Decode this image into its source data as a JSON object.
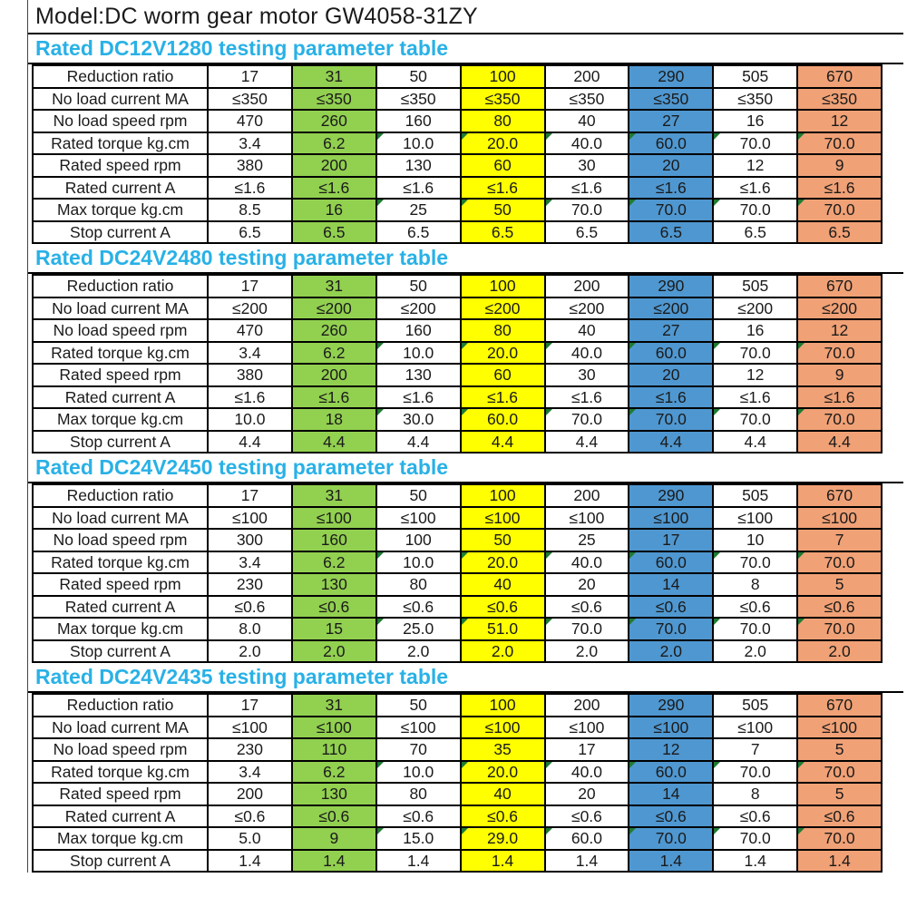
{
  "page_title": "Model:DC worm gear motor GW4058-31ZY",
  "colors": {
    "title_text": "#1a1a1a",
    "header_text": "#29b1e6",
    "green": "#92d050",
    "yellow": "#ffff00",
    "blue": "#4f97d0",
    "salmon": "#f0a176",
    "border": "#000000"
  },
  "column_colors": [
    "none",
    "green",
    "none",
    "yellow",
    "none",
    "blue",
    "none",
    "salmon"
  ],
  "row_labels": [
    "Reduction ratio",
    "No load current MA",
    "No load speed rpm",
    "Rated torque kg.cm",
    "Rated speed rpm",
    "Rated current A",
    "Max torque kg.cm",
    "Stop current A"
  ],
  "tables": [
    {
      "title": "Rated DC12V1280 testing parameter table",
      "rows": [
        {
          "label": "Reduction ratio",
          "values": [
            "17",
            "31",
            "50",
            "100",
            "200",
            "290",
            "505",
            "670"
          ]
        },
        {
          "label": "No load current MA",
          "values": [
            "≤350",
            "≤350",
            "≤350",
            "≤350",
            "≤350",
            "≤350",
            "≤350",
            "≤350"
          ]
        },
        {
          "label": "No load speed rpm",
          "values": [
            "470",
            "260",
            "160",
            "80",
            "40",
            "27",
            "16",
            "12"
          ]
        },
        {
          "label": "Rated torque kg.cm",
          "values": [
            "3.4",
            "6.2",
            "10.0",
            "20.0",
            "40.0",
            "60.0",
            "70.0",
            "70.0"
          ]
        },
        {
          "label": "Rated speed rpm",
          "values": [
            "380",
            "200",
            "130",
            "60",
            "30",
            "20",
            "12",
            "9"
          ]
        },
        {
          "label": "Rated current A",
          "values": [
            "≤1.6",
            "≤1.6",
            "≤1.6",
            "≤1.6",
            "≤1.6",
            "≤1.6",
            "≤1.6",
            "≤1.6"
          ]
        },
        {
          "label": "Max torque kg.cm",
          "values": [
            "8.5",
            "16",
            "25",
            "50",
            "70.0",
            "70.0",
            "70.0",
            "70.0"
          ]
        },
        {
          "label": "Stop current A",
          "values": [
            "6.5",
            "6.5",
            "6.5",
            "6.5",
            "6.5",
            "6.5",
            "6.5",
            "6.5"
          ]
        }
      ]
    },
    {
      "title": "Rated DC24V2480 testing parameter table",
      "rows": [
        {
          "label": "Reduction ratio",
          "values": [
            "17",
            "31",
            "50",
            "100",
            "200",
            "290",
            "505",
            "670"
          ]
        },
        {
          "label": "No load current MA",
          "values": [
            "≤200",
            "≤200",
            "≤200",
            "≤200",
            "≤200",
            "≤200",
            "≤200",
            "≤200"
          ]
        },
        {
          "label": "No load speed rpm",
          "values": [
            "470",
            "260",
            "160",
            "80",
            "40",
            "27",
            "16",
            "12"
          ]
        },
        {
          "label": "Rated torque kg.cm",
          "values": [
            "3.4",
            "6.2",
            "10.0",
            "20.0",
            "40.0",
            "60.0",
            "70.0",
            "70.0"
          ]
        },
        {
          "label": "Rated speed rpm",
          "values": [
            "380",
            "200",
            "130",
            "60",
            "30",
            "20",
            "12",
            "9"
          ]
        },
        {
          "label": "Rated current A",
          "values": [
            "≤1.6",
            "≤1.6",
            "≤1.6",
            "≤1.6",
            "≤1.6",
            "≤1.6",
            "≤1.6",
            "≤1.6"
          ]
        },
        {
          "label": "Max torque kg.cm",
          "values": [
            "10.0",
            "18",
            "30.0",
            "60.0",
            "70.0",
            "70.0",
            "70.0",
            "70.0"
          ]
        },
        {
          "label": "Stop current A",
          "values": [
            "4.4",
            "4.4",
            "4.4",
            "4.4",
            "4.4",
            "4.4",
            "4.4",
            "4.4"
          ]
        }
      ]
    },
    {
      "title": "Rated DC24V2450 testing parameter table",
      "rows": [
        {
          "label": "Reduction ratio",
          "values": [
            "17",
            "31",
            "50",
            "100",
            "200",
            "290",
            "505",
            "670"
          ]
        },
        {
          "label": "No load current MA",
          "values": [
            "≤100",
            "≤100",
            "≤100",
            "≤100",
            "≤100",
            "≤100",
            "≤100",
            "≤100"
          ]
        },
        {
          "label": "No load speed rpm",
          "values": [
            "300",
            "160",
            "100",
            "50",
            "25",
            "17",
            "10",
            "7"
          ]
        },
        {
          "label": "Rated torque kg.cm",
          "values": [
            "3.4",
            "6.2",
            "10.0",
            "20.0",
            "40.0",
            "60.0",
            "70.0",
            "70.0"
          ]
        },
        {
          "label": "Rated speed rpm",
          "values": [
            "230",
            "130",
            "80",
            "40",
            "20",
            "14",
            "8",
            "5"
          ]
        },
        {
          "label": "Rated current A",
          "values": [
            "≤0.6",
            "≤0.6",
            "≤0.6",
            "≤0.6",
            "≤0.6",
            "≤0.6",
            "≤0.6",
            "≤0.6"
          ]
        },
        {
          "label": "Max torque kg.cm",
          "values": [
            "8.0",
            "15",
            "25.0",
            "51.0",
            "70.0",
            "70.0",
            "70.0",
            "70.0"
          ]
        },
        {
          "label": "Stop current A",
          "values": [
            "2.0",
            "2.0",
            "2.0",
            "2.0",
            "2.0",
            "2.0",
            "2.0",
            "2.0"
          ]
        }
      ]
    },
    {
      "title": "Rated DC24V2435 testing parameter table",
      "rows": [
        {
          "label": "Reduction ratio",
          "values": [
            "17",
            "31",
            "50",
            "100",
            "200",
            "290",
            "505",
            "670"
          ]
        },
        {
          "label": "No load current MA",
          "values": [
            "≤100",
            "≤100",
            "≤100",
            "≤100",
            "≤100",
            "≤100",
            "≤100",
            "≤100"
          ]
        },
        {
          "label": "No load speed rpm",
          "values": [
            "230",
            "110",
            "70",
            "35",
            "17",
            "12",
            "7",
            "5"
          ]
        },
        {
          "label": "Rated torque kg.cm",
          "values": [
            "3.4",
            "6.2",
            "10.0",
            "20.0",
            "40.0",
            "60.0",
            "70.0",
            "70.0"
          ]
        },
        {
          "label": "Rated speed rpm",
          "values": [
            "200",
            "130",
            "80",
            "40",
            "20",
            "14",
            "8",
            "5"
          ]
        },
        {
          "label": "Rated current A",
          "values": [
            "≤0.6",
            "≤0.6",
            "≤0.6",
            "≤0.6",
            "≤0.6",
            "≤0.6",
            "≤0.6",
            "≤0.6"
          ]
        },
        {
          "label": "Max torque kg.cm",
          "values": [
            "5.0",
            "9",
            "15.0",
            "29.0",
            "60.0",
            "70.0",
            "70.0",
            "70.0"
          ]
        },
        {
          "label": "Stop current A",
          "values": [
            "1.4",
            "1.4",
            "1.4",
            "1.4",
            "1.4",
            "1.4",
            "1.4",
            "1.4"
          ]
        }
      ]
    }
  ]
}
